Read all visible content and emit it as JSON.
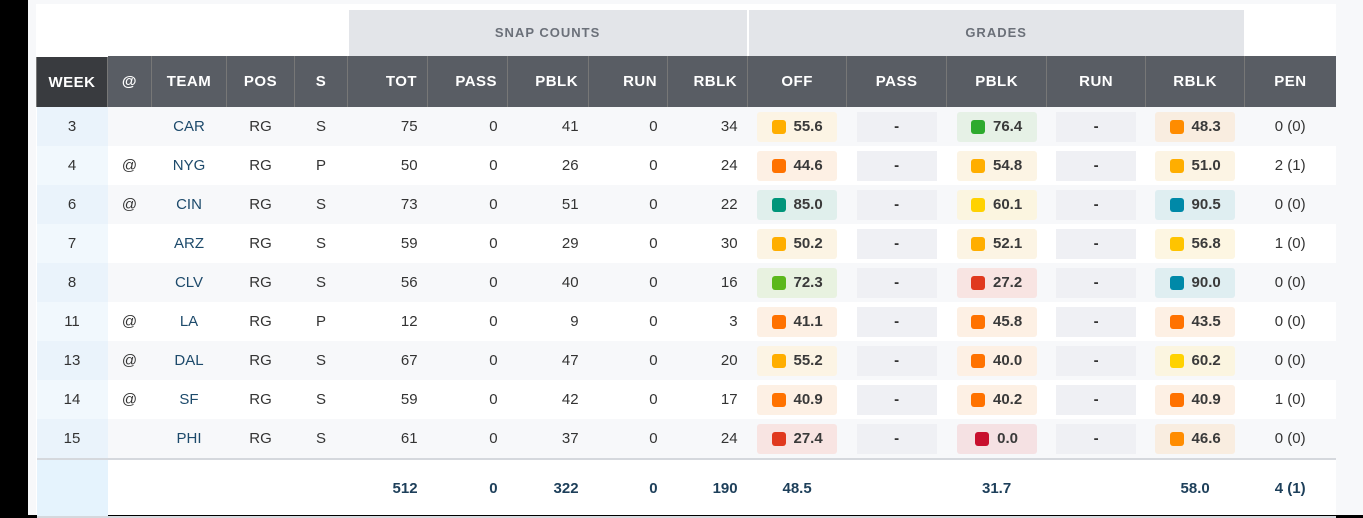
{
  "group_headers": {
    "snap_counts": "SNAP COUNTS",
    "grades": "GRADES"
  },
  "columns": [
    "WEEK",
    "@",
    "TEAM",
    "POS",
    "S",
    "TOT",
    "PASS",
    "PBLK",
    "RUN",
    "RBLK",
    "OFF",
    "PASS",
    "PBLK",
    "RUN",
    "RBLK",
    "PEN"
  ],
  "rows": [
    {
      "week": "3",
      "at": "",
      "team": "CAR",
      "pos": "RG",
      "s": "S",
      "tot": "75",
      "pass": "0",
      "pblk": "41",
      "run": "0",
      "rblk": "34",
      "g_off": "55.6",
      "g_pass": "-",
      "g_pblk": "76.4",
      "g_run": "-",
      "g_rblk": "48.3",
      "pen": "0 (0)"
    },
    {
      "week": "4",
      "at": "@",
      "team": "NYG",
      "pos": "RG",
      "s": "P",
      "tot": "50",
      "pass": "0",
      "pblk": "26",
      "run": "0",
      "rblk": "24",
      "g_off": "44.6",
      "g_pass": "-",
      "g_pblk": "54.8",
      "g_run": "-",
      "g_rblk": "51.0",
      "pen": "2 (1)"
    },
    {
      "week": "6",
      "at": "@",
      "team": "CIN",
      "pos": "RG",
      "s": "S",
      "tot": "73",
      "pass": "0",
      "pblk": "51",
      "run": "0",
      "rblk": "22",
      "g_off": "85.0",
      "g_pass": "-",
      "g_pblk": "60.1",
      "g_run": "-",
      "g_rblk": "90.5",
      "pen": "0 (0)"
    },
    {
      "week": "7",
      "at": "",
      "team": "ARZ",
      "pos": "RG",
      "s": "S",
      "tot": "59",
      "pass": "0",
      "pblk": "29",
      "run": "0",
      "rblk": "30",
      "g_off": "50.2",
      "g_pass": "-",
      "g_pblk": "52.1",
      "g_run": "-",
      "g_rblk": "56.8",
      "pen": "1 (0)"
    },
    {
      "week": "8",
      "at": "",
      "team": "CLV",
      "pos": "RG",
      "s": "S",
      "tot": "56",
      "pass": "0",
      "pblk": "40",
      "run": "0",
      "rblk": "16",
      "g_off": "72.3",
      "g_pass": "-",
      "g_pblk": "27.2",
      "g_run": "-",
      "g_rblk": "90.0",
      "pen": "0 (0)"
    },
    {
      "week": "11",
      "at": "@",
      "team": "LA",
      "pos": "RG",
      "s": "P",
      "tot": "12",
      "pass": "0",
      "pblk": "9",
      "run": "0",
      "rblk": "3",
      "g_off": "41.1",
      "g_pass": "-",
      "g_pblk": "45.8",
      "g_run": "-",
      "g_rblk": "43.5",
      "pen": "0 (0)"
    },
    {
      "week": "13",
      "at": "@",
      "team": "DAL",
      "pos": "RG",
      "s": "S",
      "tot": "67",
      "pass": "0",
      "pblk": "47",
      "run": "0",
      "rblk": "20",
      "g_off": "55.2",
      "g_pass": "-",
      "g_pblk": "40.0",
      "g_run": "-",
      "g_rblk": "60.2",
      "pen": "0 (0)"
    },
    {
      "week": "14",
      "at": "@",
      "team": "SF",
      "pos": "RG",
      "s": "S",
      "tot": "59",
      "pass": "0",
      "pblk": "42",
      "run": "0",
      "rblk": "17",
      "g_off": "40.9",
      "g_pass": "-",
      "g_pblk": "40.2",
      "g_run": "-",
      "g_rblk": "40.9",
      "pen": "1 (0)"
    },
    {
      "week": "15",
      "at": "",
      "team": "PHI",
      "pos": "RG",
      "s": "S",
      "tot": "61",
      "pass": "0",
      "pblk": "37",
      "run": "0",
      "rblk": "24",
      "g_off": "27.4",
      "g_pass": "-",
      "g_pblk": "0.0",
      "g_run": "-",
      "g_rblk": "46.6",
      "pen": "0 (0)"
    }
  ],
  "totals": {
    "tot": "512",
    "pass": "0",
    "pblk": "322",
    "run": "0",
    "rblk": "190",
    "g_off": "48.5",
    "g_pblk": "31.7",
    "g_rblk": "58.0",
    "pen": "4 (1)"
  },
  "grade_colors": [
    {
      "min": 90,
      "sq": "#0089a8",
      "bg": "#dfeef1"
    },
    {
      "min": 80,
      "sq": "#00957a",
      "bg": "#e0efec"
    },
    {
      "min": 75,
      "sq": "#2eaa2e",
      "bg": "#e6f1e6"
    },
    {
      "min": 70,
      "sq": "#5cb81c",
      "bg": "#e8f2e0"
    },
    {
      "min": 60,
      "sq": "#ffd200",
      "bg": "#fbf5e0"
    },
    {
      "min": 56,
      "sq": "#ffc400",
      "bg": "#fdf6e2"
    },
    {
      "min": 50,
      "sq": "#ffae00",
      "bg": "#fcf4e4"
    },
    {
      "min": 46,
      "sq": "#ff8c00",
      "bg": "#f9ede0"
    },
    {
      "min": 40,
      "sq": "#ff7200",
      "bg": "#fdf0e4"
    },
    {
      "min": 20,
      "sq": "#e0391e",
      "bg": "#f8e4e2"
    },
    {
      "min": 0,
      "sq": "#c8102e",
      "bg": "#f5e1e3"
    }
  ]
}
